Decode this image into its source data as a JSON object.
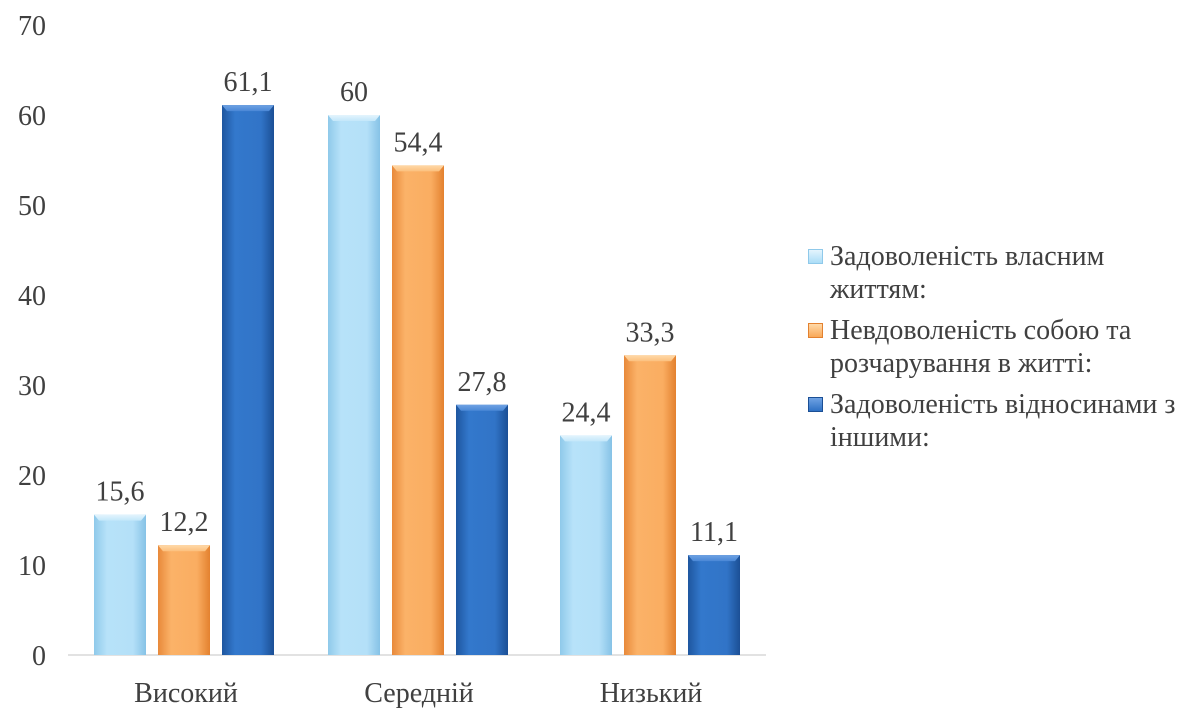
{
  "chart_data": {
    "type": "bar",
    "categories": [
      "Високий",
      "Середній",
      "Низький"
    ],
    "series": [
      {
        "name": "Задоволеність власним життям:",
        "values": [
          15.6,
          60,
          24.4
        ],
        "labels": [
          "15,6",
          "60",
          "24,4"
        ],
        "color": "#ABDDF7"
      },
      {
        "name": "Невдоволеність собою та розчарування в житті:",
        "values": [
          12.2,
          54.4,
          33.3
        ],
        "labels": [
          "12,2",
          "54,4",
          "33,3"
        ],
        "color": "#F9A858"
      },
      {
        "name": "Задоволеність відносинами з іншими:",
        "values": [
          61.1,
          27.8,
          11.1
        ],
        "labels": [
          "61,1",
          "27,8",
          "11,1"
        ],
        "color": "#2F71C4"
      }
    ],
    "y_ticks": [
      "0",
      "10",
      "20",
      "30",
      "40",
      "50",
      "60",
      "70"
    ],
    "ylim": [
      0,
      70
    ],
    "grid": false,
    "legend_position": "right",
    "title": "",
    "xlabel": "",
    "ylabel": ""
  }
}
